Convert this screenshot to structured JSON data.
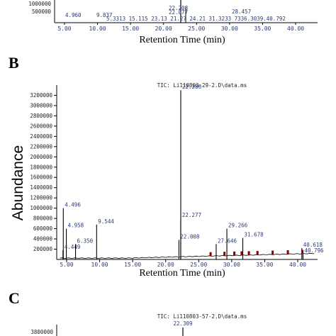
{
  "panels": {
    "b_label": "B",
    "c_label": "C"
  },
  "labels": {
    "y_axis": "Abundance",
    "x_axis_top": "Retention Time (min)",
    "x_axis_b": "Retention Time (min)"
  },
  "tic": {
    "b": "TIC: Li110803-29-2.D\\data.ms",
    "c": "TIC: Li110803-57-2.D\\data.ms"
  },
  "colors": {
    "axis": "#000000",
    "trace": "#000000",
    "peak_label": "#2a3a78",
    "marker": "#8b0000"
  },
  "chart_data": [
    {
      "type": "line",
      "title": "",
      "xlabel": "Retention Time (min)",
      "ylabel": "",
      "xlim": [
        3.5,
        43
      ],
      "x_ticks": [
        "5.00",
        "10.00",
        "15.00",
        "20.00",
        "25.00",
        "30.00",
        "35.00",
        "40.00"
      ],
      "y_ticks": [
        "1000000",
        "500000"
      ],
      "peaks": [
        {
          "x": 4.96,
          "label": "4.960"
        },
        {
          "x": 9.837,
          "label": "9.837"
        },
        {
          "x": 22.208,
          "label": "22.208"
        },
        {
          "x": 22.077,
          "label": "22.077"
        },
        {
          "x": 28.457,
          "label": "28.457"
        },
        {
          "x": 31.323,
          "label": "31.3233"
        }
      ],
      "label_run": "5.3313 15.115 23.13 21.27 24.21 31.3233 7336.3039.40.792"
    },
    {
      "type": "line",
      "title": "TIC: Li110803-29-2.D\\data.ms",
      "xlabel": "Retention Time (min)",
      "ylabel": "Abundance",
      "xlim": [
        3.5,
        43
      ],
      "ylim": [
        0,
        3400000
      ],
      "x_ticks": [
        "5.00",
        "10.00",
        "15.00",
        "20.00",
        "25.00",
        "30.00",
        "35.00",
        "40.00"
      ],
      "y_ticks": [
        "200000",
        "400000",
        "600000",
        "800000",
        "1000000",
        "1200000",
        "1400000",
        "1600000",
        "1800000",
        "2000000",
        "2200000",
        "2400000",
        "2600000",
        "2800000",
        "3000000",
        "3200000"
      ],
      "y_tick_values": [
        200000,
        400000,
        600000,
        800000,
        1000000,
        1200000,
        1400000,
        1600000,
        1800000,
        2000000,
        2200000,
        2400000,
        2600000,
        2800000,
        3000000,
        3200000
      ],
      "peaks": [
        {
          "x": 4.496,
          "y": 1000000,
          "label": "4.496"
        },
        {
          "x": 4.958,
          "y": 600000,
          "label": "4.958"
        },
        {
          "x": 4.449,
          "y": 180000,
          "label": "4.449"
        },
        {
          "x": 6.35,
          "y": 300000,
          "label": "6.350"
        },
        {
          "x": 9.544,
          "y": 680000,
          "label": "9.544"
        },
        {
          "x": 22.286,
          "y": 3300000,
          "label": "22.286"
        },
        {
          "x": 22.277,
          "y": 800000,
          "label": "22.277"
        },
        {
          "x": 22.008,
          "y": 380000,
          "label": "22.008"
        },
        {
          "x": 29.266,
          "y": 600000,
          "label": "29.266"
        },
        {
          "x": 31.678,
          "y": 420000,
          "label": "31.678"
        },
        {
          "x": 27.646,
          "y": 300000,
          "label": "27.646"
        },
        {
          "x": 40.618,
          "y": 220000,
          "label": "40.618"
        },
        {
          "x": 40.796,
          "y": 110000,
          "label": "40.796"
        }
      ]
    },
    {
      "type": "line",
      "title": "TIC: Li110803-57-2.D\\data.ms",
      "xlabel": "",
      "ylabel": "",
      "peaks": [
        {
          "x": 22.309,
          "label": "22.309"
        }
      ],
      "y_ticks": [
        "3800000"
      ]
    }
  ]
}
